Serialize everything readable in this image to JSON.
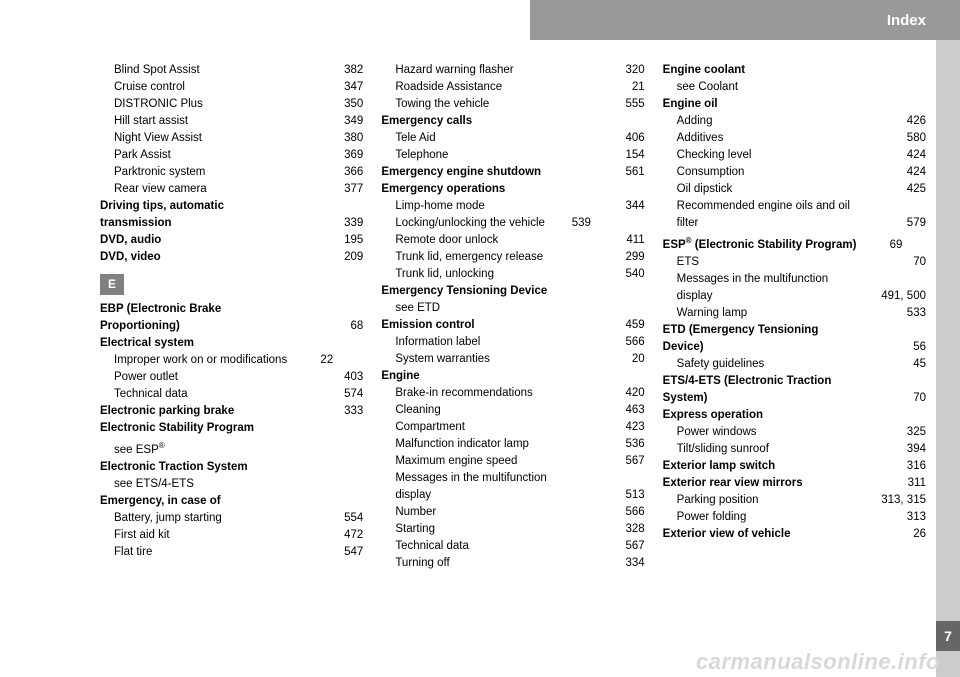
{
  "header": {
    "title": "Index"
  },
  "page_number": "7",
  "watermark": "carmanualsonline.info",
  "section_letter": "E",
  "columns": [
    [
      {
        "t": "sub",
        "label": "Blind Spot Assist",
        "pg": "382"
      },
      {
        "t": "sub",
        "label": "Cruise control",
        "pg": "347"
      },
      {
        "t": "sub",
        "label": "DISTRONIC Plus",
        "pg": "350"
      },
      {
        "t": "sub",
        "label": "Hill start assist",
        "pg": "349"
      },
      {
        "t": "sub",
        "label": "Night View Assist",
        "pg": "380"
      },
      {
        "t": "sub",
        "label": "Park Assist",
        "pg": "369"
      },
      {
        "t": "sub",
        "label": "Parktronic system",
        "pg": "366"
      },
      {
        "t": "sub",
        "label": "Rear view camera",
        "pg": "377"
      },
      {
        "t": "head",
        "label": "Driving tips, automatic"
      },
      {
        "t": "main",
        "label": "transmission",
        "bold": true,
        "pg": "339"
      },
      {
        "t": "main",
        "label": "DVD, audio",
        "bold": true,
        "pg": "195"
      },
      {
        "t": "main",
        "label": "DVD, video",
        "bold": true,
        "pg": "209"
      },
      {
        "t": "section"
      },
      {
        "t": "head",
        "label": "EBP (Electronic Brake"
      },
      {
        "t": "main",
        "label": "Proportioning)",
        "bold": true,
        "pg": "68"
      },
      {
        "t": "main",
        "label": "Electrical system",
        "bold": true
      },
      {
        "t": "sub",
        "label": "Improper work on or modifications",
        "short": true,
        "pg": "22"
      },
      {
        "t": "sub",
        "label": "Power outlet",
        "pg": "403"
      },
      {
        "t": "sub",
        "label": "Technical data",
        "pg": "574"
      },
      {
        "t": "main",
        "label": "Electronic parking brake",
        "bold": true,
        "pg": "333"
      },
      {
        "t": "main",
        "label": "Electronic Stability Program",
        "bold": true
      },
      {
        "t": "sub",
        "label": "see ESP",
        "sup": "®",
        "nodots": true
      },
      {
        "t": "main",
        "label": "Electronic Traction System",
        "bold": true
      },
      {
        "t": "sub",
        "label": "see ETS/4-ETS",
        "nodots": true
      },
      {
        "t": "main",
        "label": "Emergency, in case of",
        "bold": true
      },
      {
        "t": "sub",
        "label": "Battery, jump starting",
        "pg": "554"
      },
      {
        "t": "sub",
        "label": "First aid kit",
        "pg": "472"
      },
      {
        "t": "sub",
        "label": "Flat tire",
        "pg": "547"
      }
    ],
    [
      {
        "t": "sub",
        "label": "Hazard warning flasher",
        "pg": "320"
      },
      {
        "t": "sub",
        "label": "Roadside Assistance",
        "pg": "21"
      },
      {
        "t": "sub",
        "label": "Towing the vehicle",
        "pg": "555"
      },
      {
        "t": "main",
        "label": "Emergency calls",
        "bold": true
      },
      {
        "t": "sub",
        "label": "Tele Aid",
        "pg": "406"
      },
      {
        "t": "sub",
        "label": "Telephone",
        "pg": "154"
      },
      {
        "t": "main",
        "label": "Emergency engine shutdown",
        "bold": true,
        "pg": "561"
      },
      {
        "t": "main",
        "label": "Emergency operations",
        "bold": true
      },
      {
        "t": "sub",
        "label": "Limp-home mode",
        "pg": "344"
      },
      {
        "t": "sub",
        "label": "Locking/unlocking the vehicle",
        "short": true,
        "pg": "539"
      },
      {
        "t": "sub",
        "label": "Remote door unlock",
        "pg": "411"
      },
      {
        "t": "sub",
        "label": "Trunk lid, emergency release",
        "pg": "299"
      },
      {
        "t": "sub",
        "label": "Trunk lid, unlocking",
        "pg": "540"
      },
      {
        "t": "main",
        "label": "Emergency Tensioning Device",
        "bold": true
      },
      {
        "t": "sub",
        "label": "see ETD",
        "nodots": true
      },
      {
        "t": "main",
        "label": "Emission control",
        "bold": true,
        "pg": "459"
      },
      {
        "t": "sub",
        "label": "Information label",
        "pg": "566"
      },
      {
        "t": "sub",
        "label": "System warranties",
        "pg": "20"
      },
      {
        "t": "main",
        "label": "Engine",
        "bold": true
      },
      {
        "t": "sub",
        "label": "Brake-in recommendations",
        "pg": "420"
      },
      {
        "t": "sub",
        "label": "Cleaning",
        "pg": "463"
      },
      {
        "t": "sub",
        "label": "Compartment",
        "pg": "423"
      },
      {
        "t": "sub",
        "label": "Malfunction indicator lamp",
        "pg": "536"
      },
      {
        "t": "sub",
        "label": "Maximum engine speed",
        "pg": "567"
      },
      {
        "t": "sub",
        "label": "Messages in the multifunction"
      },
      {
        "t": "sub",
        "label": "display",
        "pg": "513"
      },
      {
        "t": "sub",
        "label": "Number",
        "pg": "566"
      },
      {
        "t": "sub",
        "label": "Starting",
        "pg": "328"
      },
      {
        "t": "sub",
        "label": "Technical data",
        "pg": "567"
      },
      {
        "t": "sub",
        "label": "Turning off",
        "pg": "334"
      }
    ],
    [
      {
        "t": "main",
        "label": "Engine coolant",
        "bold": true
      },
      {
        "t": "sub",
        "label": "see Coolant",
        "nodots": true
      },
      {
        "t": "main",
        "label": "Engine oil",
        "bold": true
      },
      {
        "t": "sub",
        "label": "Adding",
        "pg": "426"
      },
      {
        "t": "sub",
        "label": "Additives",
        "pg": "580"
      },
      {
        "t": "sub",
        "label": "Checking level",
        "pg": "424"
      },
      {
        "t": "sub",
        "label": "Consumption",
        "pg": "424"
      },
      {
        "t": "sub",
        "label": "Oil dipstick",
        "pg": "425"
      },
      {
        "t": "sub",
        "label": "Recommended engine oils and oil"
      },
      {
        "t": "sub",
        "label": "filter",
        "pg": "579"
      },
      {
        "t": "main",
        "label": "ESP",
        "sup": "®",
        "label2": " (Electronic Stability Program)",
        "bold": true,
        "short": true,
        "pg": "69"
      },
      {
        "t": "sub",
        "label": "ETS",
        "pg": "70"
      },
      {
        "t": "sub",
        "label": "Messages in the multifunction"
      },
      {
        "t": "sub",
        "label": "display",
        "pg": "491, 500"
      },
      {
        "t": "sub",
        "label": "Warning lamp",
        "pg": "533"
      },
      {
        "t": "head",
        "label": "ETD (Emergency Tensioning"
      },
      {
        "t": "main",
        "label": "Device)",
        "bold": true,
        "pg": "56"
      },
      {
        "t": "sub",
        "label": "Safety guidelines",
        "pg": "45"
      },
      {
        "t": "head",
        "label": "ETS/4-ETS (Electronic Traction"
      },
      {
        "t": "main",
        "label": "System)",
        "bold": true,
        "pg": "70"
      },
      {
        "t": "main",
        "label": "Express operation",
        "bold": true
      },
      {
        "t": "sub",
        "label": "Power windows",
        "pg": "325"
      },
      {
        "t": "sub",
        "label": "Tilt/sliding sunroof",
        "pg": "394"
      },
      {
        "t": "main",
        "label": "Exterior lamp switch",
        "bold": true,
        "pg": "316"
      },
      {
        "t": "main",
        "label": "Exterior rear view mirrors",
        "bold": true,
        "pg": "311"
      },
      {
        "t": "sub",
        "label": "Parking position",
        "pg": "313, 315"
      },
      {
        "t": "sub",
        "label": "Power folding",
        "pg": "313"
      },
      {
        "t": "main",
        "label": "Exterior view of vehicle",
        "bold": true,
        "pg": "26"
      }
    ]
  ]
}
